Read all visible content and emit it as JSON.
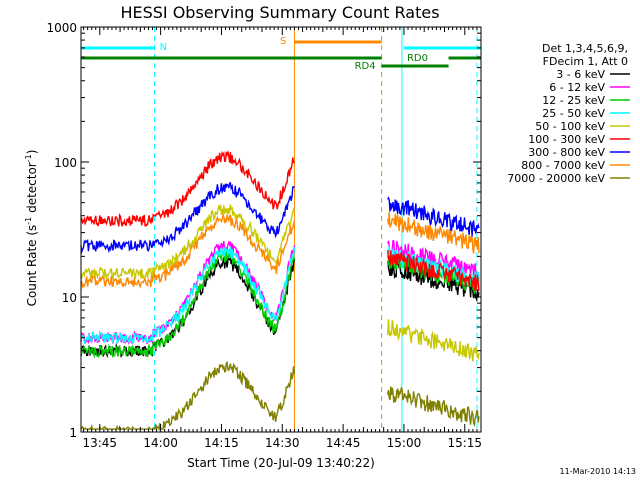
{
  "chart_data": {
    "type": "line",
    "title": "HESSI Observing Summary Count Rates",
    "xlabel": "Start Time (20-Jul-09 13:40:22)",
    "ylabel": "Count Rate (s⁻¹ detector⁻¹)",
    "ylabel_parts": {
      "base": "Count Rate (s",
      "sup1": "-1",
      "mid": " detector",
      "sup2": "-1",
      "end": ")"
    },
    "y_scale": "log",
    "ylim": [
      1,
      1000
    ],
    "xlim": [
      "13:40:22",
      "15:19:00"
    ],
    "x_ticks": [
      "13:45",
      "14:00",
      "14:15",
      "14:30",
      "14:45",
      "15:00",
      "15:15"
    ],
    "y_ticks": [
      "1",
      "10",
      "100",
      "1000"
    ],
    "legend_header": [
      "Det 1,3,4,5,6,9,",
      "FDecim 1, Att 0"
    ],
    "legend_placement": "right",
    "series": [
      {
        "name": "3 - 6 keV",
        "color": "#000000",
        "base": 4,
        "peak": 18,
        "post": 17
      },
      {
        "name": "6 - 12 keV",
        "color": "#ff00ff",
        "base": 5,
        "peak": 24,
        "post": 24
      },
      {
        "name": "12 - 25 keV",
        "color": "#00cc00",
        "base": 4,
        "peak": 20,
        "post": 19
      },
      {
        "name": "25 - 50 keV",
        "color": "#00ffff",
        "base": 5,
        "peak": 22,
        "post": 21
      },
      {
        "name": "50 - 100 keV",
        "color": "#c8c800",
        "base": 15,
        "peak": 45,
        "post": 6
      },
      {
        "name": "100 - 300 keV",
        "color": "#ff0000",
        "base": 37,
        "peak": 110,
        "post": 20
      },
      {
        "name": "300 - 800 keV",
        "color": "#0000ff",
        "base": 24,
        "peak": 65,
        "post": 50
      },
      {
        "name": "800 - 7000 keV",
        "color": "#ff8800",
        "base": 13,
        "peak": 38,
        "post": 38
      },
      {
        "name": "7000 - 20000 keV",
        "color": "#808000",
        "base": 1,
        "peak": 3,
        "post": 2
      }
    ],
    "markers": [
      {
        "label": "N",
        "color": "#00ffff"
      },
      {
        "label": "S",
        "color": "#ff8800"
      },
      {
        "label": "RD0",
        "color": "#008000"
      },
      {
        "label": "RD4",
        "color": "#008000"
      }
    ]
  },
  "timestamp": "11-Mar-2010 14:13"
}
